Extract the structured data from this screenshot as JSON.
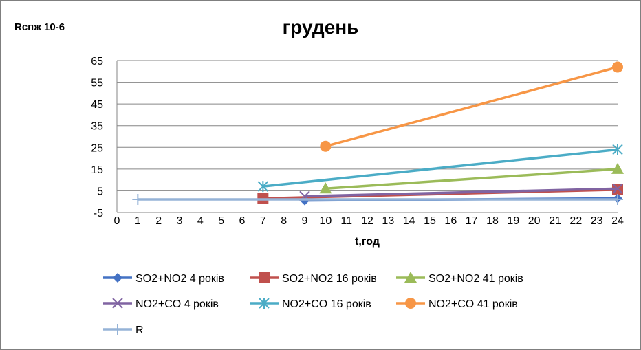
{
  "corner_label": "Rспж 10-6",
  "chart_data": {
    "type": "line",
    "title": "грудень",
    "xlabel": "t,год",
    "ylabel": "",
    "xlim": [
      0,
      24
    ],
    "ylim": [
      -5,
      65
    ],
    "x_ticks": [
      0,
      1,
      2,
      3,
      4,
      5,
      6,
      7,
      8,
      9,
      10,
      11,
      12,
      13,
      14,
      15,
      16,
      17,
      18,
      19,
      20,
      21,
      22,
      23,
      24
    ],
    "y_ticks": [
      -5,
      5,
      15,
      25,
      35,
      45,
      55,
      65
    ],
    "grid": "horizontal",
    "legend_position": "bottom",
    "series": [
      {
        "name": "SO2+NO2  4 років",
        "color": "#4472c4",
        "marker": "diamond",
        "x": [
          9,
          24
        ],
        "y": [
          0.5,
          1.5
        ]
      },
      {
        "name": "SO2+NO2  16 років",
        "color": "#c0504d",
        "marker": "square",
        "x": [
          7,
          24
        ],
        "y": [
          1.5,
          5.5
        ]
      },
      {
        "name": "SO2+NO2 41 років",
        "color": "#9bbb59",
        "marker": "triangle",
        "x": [
          10,
          24
        ],
        "y": [
          6,
          15
        ]
      },
      {
        "name": "NO2+CO 4 років",
        "color": "#8064a2",
        "marker": "x",
        "x": [
          9,
          24
        ],
        "y": [
          2.5,
          6
        ]
      },
      {
        "name": "NO2+CO 16  років",
        "color": "#4bacc6",
        "marker": "star",
        "x": [
          7,
          24
        ],
        "y": [
          7,
          24
        ]
      },
      {
        "name": "NO2+CO 41 років",
        "color": "#f79646",
        "marker": "circle",
        "x": [
          10,
          24
        ],
        "y": [
          25.5,
          62
        ]
      },
      {
        "name": "R",
        "color": "#95b3d7",
        "marker": "plus",
        "x": [
          1,
          24
        ],
        "y": [
          1,
          1
        ]
      }
    ]
  }
}
